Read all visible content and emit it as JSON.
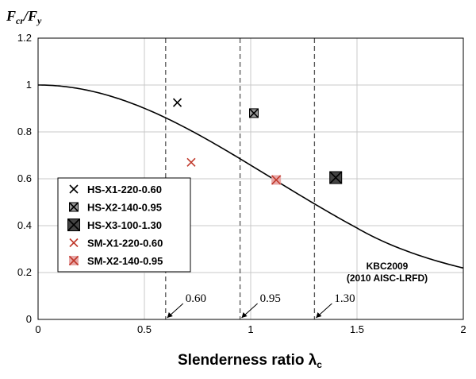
{
  "chart_data": {
    "type": "scatter",
    "xlabel": "Slenderness ratio λ",
    "xlabel_subscript": "c",
    "ylabel_parts": [
      "F",
      "cr",
      "/F",
      "y"
    ],
    "xlim": [
      0,
      2
    ],
    "ylim": [
      0,
      1.2
    ],
    "x_ticks": [
      0,
      0.5,
      1,
      1.5,
      2
    ],
    "x_tick_labels": [
      "0",
      "0.5",
      "1",
      "1.5",
      "2"
    ],
    "y_ticks": [
      0,
      0.2,
      0.4,
      0.6,
      0.8,
      1,
      1.2
    ],
    "y_tick_labels": [
      "0",
      "0.2",
      "0.4",
      "0.6",
      "0.8",
      "1",
      "1.2"
    ],
    "grid": true,
    "legend_position": "left",
    "series": [
      {
        "name": "HS-X1-220-0.60",
        "marker": "x",
        "color": "#000000",
        "fill": "none",
        "x": [
          0.655
        ],
        "y": [
          0.925
        ]
      },
      {
        "name": "HS-X2-140-0.95",
        "marker": "boxed-x",
        "color": "#000000",
        "fill": "#999999",
        "size": "medium",
        "x": [
          1.015
        ],
        "y": [
          0.88
        ]
      },
      {
        "name": "HS-X3-100-1.30",
        "marker": "boxed-x",
        "color": "#000000",
        "fill": "#444444",
        "size": "large",
        "x": [
          1.4
        ],
        "y": [
          0.605
        ]
      },
      {
        "name": "SM-X1-220-0.60",
        "marker": "x",
        "color": "#c0392b",
        "fill": "none",
        "x": [
          0.72
        ],
        "y": [
          0.67
        ]
      },
      {
        "name": "SM-X2-140-0.95",
        "marker": "boxed-x",
        "color": "#c0392b",
        "fill": "#e8a8a8",
        "size": "medium",
        "x": [
          1.12
        ],
        "y": [
          0.595
        ]
      }
    ],
    "curve": {
      "label_line1": "KBC2009",
      "label_line2": "(2010 AISC-LRFD)",
      "formula": "lambda<=1.5 ? 0.658^(lambda^2) : 0.877/lambda^2"
    },
    "reference_lines": [
      {
        "x": 0.6,
        "label": "0.60"
      },
      {
        "x": 0.95,
        "label": "0.95"
      },
      {
        "x": 1.3,
        "label": "1.30"
      }
    ]
  }
}
